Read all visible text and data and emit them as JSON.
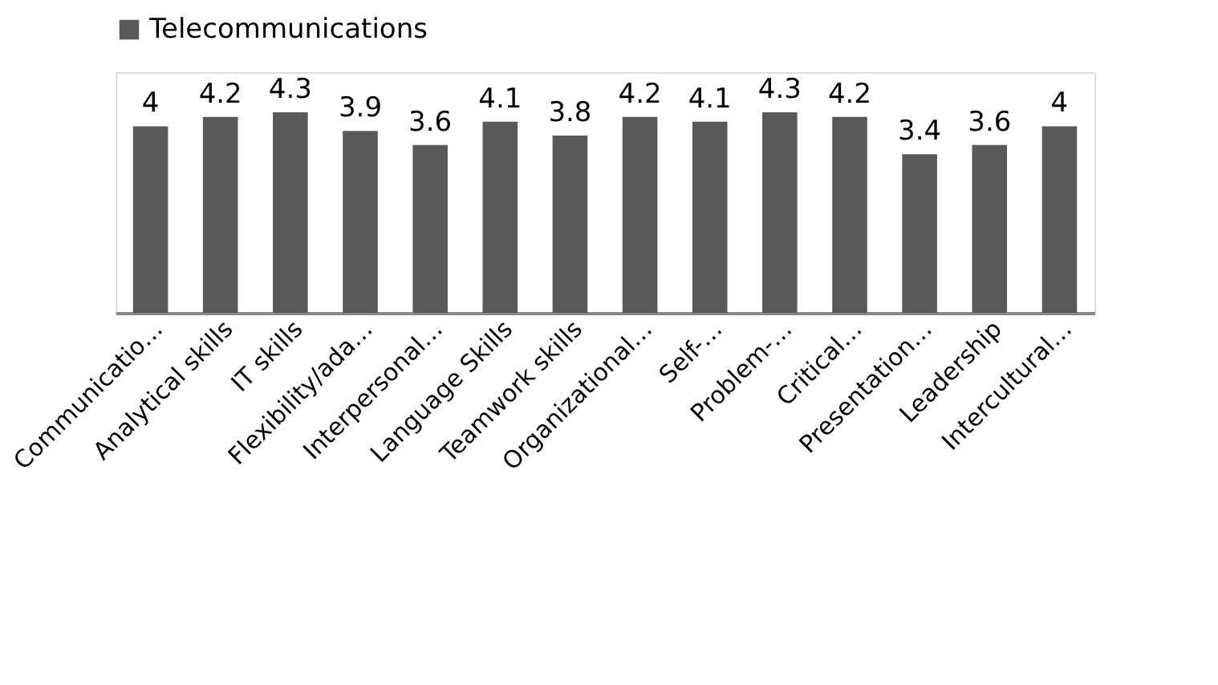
{
  "chart_data": {
    "type": "bar",
    "categories": [
      "Communicatio…",
      "Analytical skills",
      "IT skills",
      "Flexibility/ada…",
      "Interpersonal…",
      "Language Skills",
      "Teamwork skills",
      "Organizational…",
      "Self-…",
      "Problem-…",
      "Critical…",
      "Presentation…",
      "Leadership",
      "Intercultural…"
    ],
    "series": [
      {
        "name": "Telecommunications",
        "color": "#595959",
        "values": [
          4,
          4.2,
          4.3,
          3.9,
          3.6,
          4.1,
          3.8,
          4.2,
          4.1,
          4.3,
          4.2,
          3.4,
          3.6,
          4
        ]
      }
    ],
    "data_labels": true,
    "legend": "top",
    "grid": false
  }
}
